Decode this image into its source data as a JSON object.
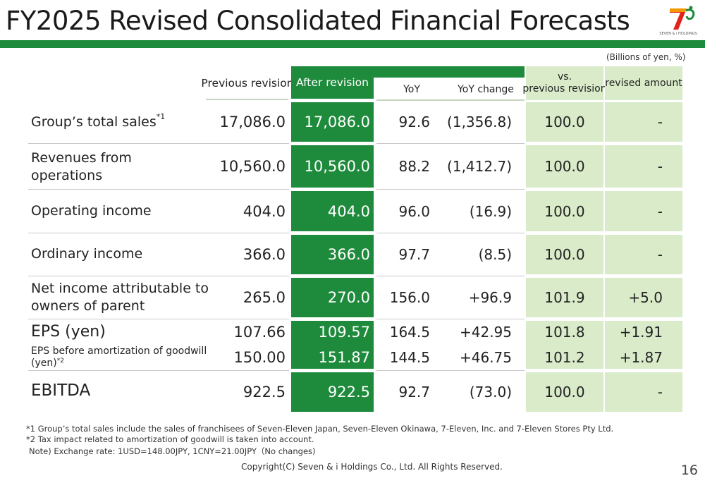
{
  "header": {
    "title": "FY2025 Revised Consolidated Financial Forecasts",
    "logo_text": "SEVEN & i HOLDINGS",
    "units": "(Billions of yen, %)"
  },
  "columns": {
    "previous": "Previous revision",
    "after": "After revision",
    "yoy": "YoY",
    "yoy_change": "YoY change",
    "vs_line1": "vs.",
    "vs_line2": "previous revision",
    "revised": "revised amount"
  },
  "rows": [
    {
      "label": "Group’s total sales",
      "sup": "*1",
      "previous": "17,086.0",
      "after": "17,086.0",
      "yoy": "92.6",
      "yoy_change": "(1,356.8)",
      "vs": "100.0",
      "revised": "-"
    },
    {
      "label_line1": "Revenues from",
      "label_line2": "operations",
      "previous": "10,560.0",
      "after": "10,560.0",
      "yoy": "88.2",
      "yoy_change": "(1,412.7)",
      "vs": "100.0",
      "revised": "-"
    },
    {
      "label": "Operating income",
      "previous": "404.0",
      "after": "404.0",
      "yoy": "96.0",
      "yoy_change": "(16.9)",
      "vs": "100.0",
      "revised": "-"
    },
    {
      "label": "Ordinary income",
      "previous": "366.0",
      "after": "366.0",
      "yoy": "97.7",
      "yoy_change": "(8.5)",
      "vs": "100.0",
      "revised": "-"
    },
    {
      "label_line1": "Net income attributable to",
      "label_line2": "owners of parent",
      "previous": "265.0",
      "after": "270.0",
      "yoy": "156.0",
      "yoy_change": "+96.9",
      "vs": "101.9",
      "revised": "+5.0"
    },
    {
      "label": "EPS (yen)",
      "previous": "107.66",
      "after": "109.57",
      "yoy": "164.5",
      "yoy_change": "+42.95",
      "vs": "101.8",
      "revised": "+1.91"
    },
    {
      "label_line1": "EPS before amortization of goodwill",
      "label_line2": "(yen)",
      "sup": "*2",
      "previous": "150.00",
      "after": "151.87",
      "yoy": "144.5",
      "yoy_change": "+46.75",
      "vs": "101.2",
      "revised": "+1.87"
    },
    {
      "label": "EBITDA",
      "previous": "922.5",
      "after": "922.5",
      "yoy": "92.7",
      "yoy_change": "(73.0)",
      "vs": "100.0",
      "revised": "-"
    }
  ],
  "footnotes": {
    "note1": "*1 Group’s total sales include the sales of franchisees of Seven-Eleven Japan, Seven-Eleven Okinawa, 7-Eleven, Inc. and 7-Eleven Stores Pty Ltd.",
    "note2": "*2 Tax impact related to amortization of goodwill is taken into account.",
    "note3": "Note) Exchange rate: 1USD=148.00JPY, 1CNY=21.00JPY（No changes)"
  },
  "footer": {
    "copyright": "Copyright(C) Seven & i Holdings Co., Ltd. All Rights Reserved.",
    "page": "16"
  },
  "colors": {
    "brand_green": "#1e8a3b",
    "light_green": "#d9ebc9",
    "logo_red": "#e2231a",
    "logo_orange": "#f39800"
  }
}
